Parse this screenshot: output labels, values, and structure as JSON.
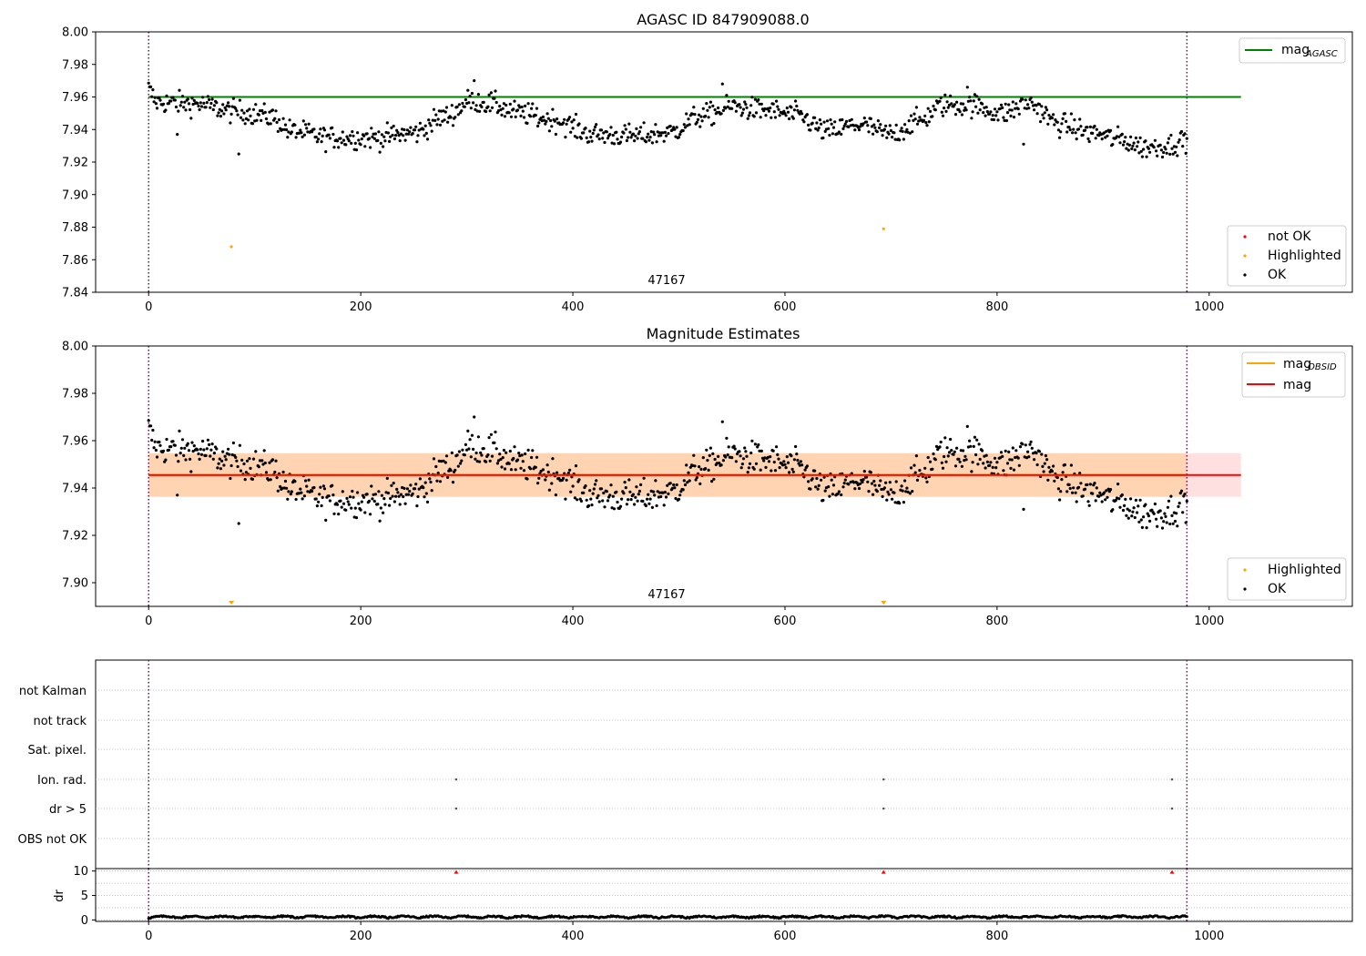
{
  "chart_data": [
    {
      "type": "scatter",
      "title": "AGASC ID 847909088.0",
      "xlabel": "",
      "ylabel": "",
      "xlim": [
        -50,
        1135
      ],
      "ylim": [
        7.84,
        8.0
      ],
      "xticks": [
        0,
        200,
        400,
        600,
        800,
        1000
      ],
      "yticks": [
        7.84,
        7.86,
        7.88,
        7.9,
        7.92,
        7.94,
        7.96,
        7.98,
        8.0
      ],
      "ytick_labels": [
        "7.84",
        "7.86",
        "7.88",
        "7.90",
        "7.92",
        "7.94",
        "7.96",
        "7.98",
        "8.00"
      ],
      "obs_boundaries": [
        0,
        979
      ],
      "obsid_label": {
        "text": "47167",
        "x": 489.5
      },
      "reference_lines": [
        {
          "name": "mag_AGASC",
          "legend_base": "mag",
          "legend_sub": "AGASC",
          "y": 7.96,
          "x_range": [
            0,
            1030
          ],
          "color": "#008000"
        }
      ],
      "highlighted_points": [
        {
          "x": 78,
          "y": 7.868
        },
        {
          "x": 693,
          "y": 7.879
        }
      ],
      "ok_points": {
        "count": 980,
        "color": "#000000"
      },
      "legend": {
        "lines": [
          {
            "label": "mag",
            "sub": "AGASC",
            "color": "#008000"
          }
        ],
        "markers": [
          {
            "label": "not OK",
            "color": "#ff0000"
          },
          {
            "label": "Highlighted",
            "color": "#ffa500"
          },
          {
            "label": "OK",
            "color": "#000000"
          }
        ],
        "placement": "top-right / bottom-right"
      }
    },
    {
      "type": "scatter",
      "title": "Magnitude Estimates",
      "xlabel": "",
      "ylabel": "",
      "xlim": [
        -50,
        1135
      ],
      "ylim": [
        7.89,
        8.0
      ],
      "xticks": [
        0,
        200,
        400,
        600,
        800,
        1000
      ],
      "yticks": [
        7.9,
        7.92,
        7.94,
        7.96,
        7.98,
        8.0
      ],
      "ytick_labels": [
        "7.90",
        "7.92",
        "7.94",
        "7.96",
        "7.98",
        "8.00"
      ],
      "obs_boundaries": [
        0,
        979
      ],
      "obsid_label": {
        "text": "47167",
        "x": 489.5
      },
      "mag": 7.9455,
      "mag_band": [
        7.9363,
        7.9547
      ],
      "mag_color": "#ff0000",
      "obsid_mag": 7.9455,
      "obsid_band": [
        7.9363,
        7.9547
      ],
      "obsid_color": "#ffa500",
      "band_x_range": [
        0,
        1030
      ],
      "offscale_highlighted_x": [
        78,
        693
      ],
      "legend": {
        "lines": [
          {
            "label": "mag",
            "sub": "OBSID",
            "color": "#ffa500"
          },
          {
            "label": "mag",
            "sub": "",
            "color": "#ff0000"
          }
        ],
        "markers": [
          {
            "label": "Highlighted",
            "color": "#ffa500"
          },
          {
            "label": "OK",
            "color": "#000000"
          }
        ]
      }
    },
    {
      "type": "scatter",
      "title": "",
      "xlim": [
        -50,
        1135
      ],
      "flag_rows": [
        "not Kalman",
        "not track",
        "Sat. pixel.",
        "Ion. rad.",
        "dr > 5",
        "OBS not OK"
      ],
      "flag_events": [
        {
          "row": "Ion. rad.",
          "x": [
            290,
            693,
            965
          ]
        },
        {
          "row": "dr > 5",
          "x": [
            290,
            693,
            965
          ]
        }
      ]
    },
    {
      "type": "scatter",
      "title": "",
      "ylabel": "dr",
      "xlim": [
        -50,
        1135
      ],
      "ylim": [
        -0.3,
        10.5
      ],
      "xticks": [
        0,
        200,
        400,
        600,
        800,
        1000
      ],
      "yticks": [
        0,
        5,
        10
      ],
      "ytick_labels": [
        "0",
        "5",
        "10"
      ],
      "dr_typical_range": [
        0.1,
        1.0
      ],
      "dr_offscale_x": [
        290,
        693,
        965
      ],
      "dr_offscale_color": "#ff0000"
    }
  ]
}
